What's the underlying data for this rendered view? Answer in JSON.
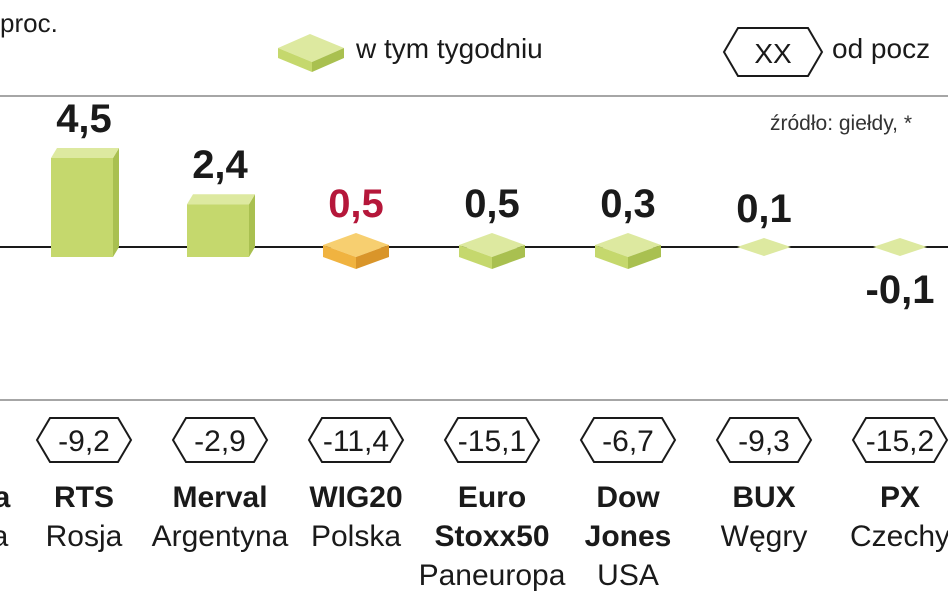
{
  "chart_data": {
    "type": "bar",
    "unit_label": "proc.",
    "legend": {
      "week_label": "w tym tygodniu",
      "ytd_marker": "XX",
      "ytd_label": "od pocz"
    },
    "source": "źródło: giełdy, *",
    "categories": [
      {
        "name": "RTS",
        "name2": "",
        "country": "Rosja",
        "week": 4.5,
        "week_label": "4,5",
        "ytd": "-9,2",
        "highlight": false
      },
      {
        "name": "Merval",
        "name2": "",
        "country": "Argentyna",
        "week": 2.4,
        "week_label": "2,4",
        "ytd": "-2,9",
        "highlight": false
      },
      {
        "name": "WIG20",
        "name2": "",
        "country": "Polska",
        "week": 0.5,
        "week_label": "0,5",
        "ytd": "-11,4",
        "highlight": true
      },
      {
        "name": "Euro",
        "name2": "Stoxx50",
        "country": "Paneuropa",
        "week": 0.5,
        "week_label": "0,5",
        "ytd": "-15,1",
        "highlight": false
      },
      {
        "name": "Dow",
        "name2": "Jones",
        "country": "USA",
        "week": 0.3,
        "week_label": "0,3",
        "ytd": "-6,7",
        "highlight": false
      },
      {
        "name": "BUX",
        "name2": "",
        "country": "Węgry",
        "week": 0.1,
        "week_label": "0,1",
        "ytd": "-9,3",
        "highlight": false
      },
      {
        "name": "PX",
        "name2": "",
        "country": "Czechy",
        "week": -0.1,
        "week_label": "-0,1",
        "ytd": "-15,2",
        "highlight": false
      }
    ],
    "partial_left": {
      "name": "a",
      "country": "a"
    },
    "colors": {
      "bar_front": "#c5d86d",
      "bar_top": "#dde9a0",
      "bar_side": "#a9c050",
      "highlight_front": "#f0b340",
      "highlight_top": "#f7cf70",
      "highlight_side": "#d9952a",
      "highlight_text": "#b5173a",
      "text": "#1a1a1a",
      "axis": "#1a1a1a",
      "rule": "#888888"
    }
  }
}
